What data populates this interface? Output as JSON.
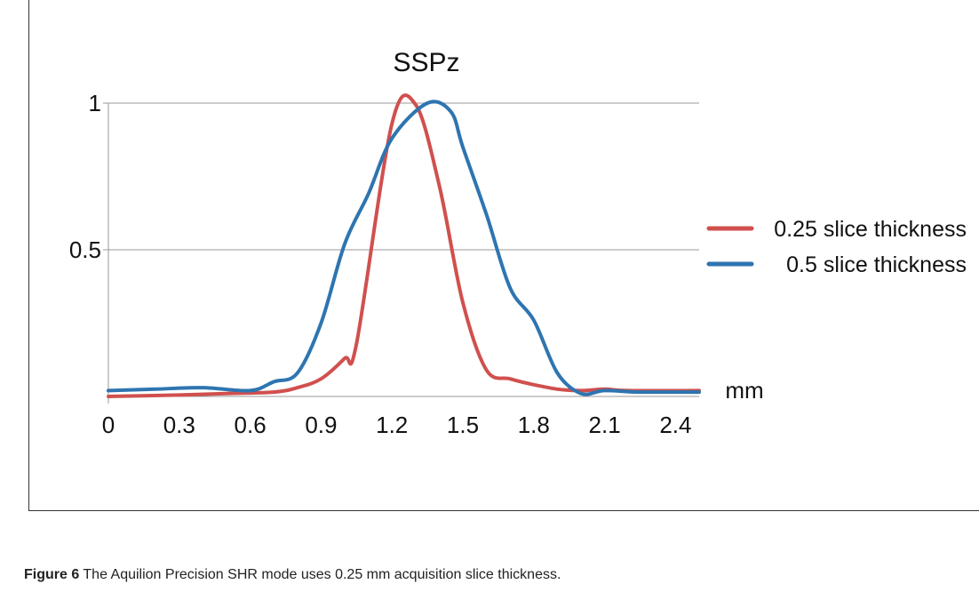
{
  "chart_data": {
    "type": "line",
    "title": "SSPz",
    "xlabel": "mm",
    "ylabel": "",
    "xlim": [
      0,
      2.5
    ],
    "ylim": [
      0,
      1
    ],
    "x_ticks": [
      "0",
      "0.3",
      "0.6",
      "0.9",
      "1.2",
      "1.5",
      "1.8",
      "2.1",
      "2.4"
    ],
    "y_ticks": [
      "0.5",
      "1"
    ],
    "grid": true,
    "legend_position": "right",
    "series": [
      {
        "name": "0.25 slice thickness",
        "color": "#d0504e",
        "points": [
          [
            0,
            0.0
          ],
          [
            0.3,
            0.005
          ],
          [
            0.5,
            0.01
          ],
          [
            0.7,
            0.015
          ],
          [
            0.8,
            0.03
          ],
          [
            0.9,
            0.06
          ],
          [
            1.0,
            0.13
          ],
          [
            1.05,
            0.18
          ],
          [
            1.2,
            0.93
          ],
          [
            1.3,
            0.995
          ],
          [
            1.4,
            0.72
          ],
          [
            1.5,
            0.32
          ],
          [
            1.6,
            0.09
          ],
          [
            1.7,
            0.06
          ],
          [
            1.8,
            0.04
          ],
          [
            1.9,
            0.025
          ],
          [
            2.0,
            0.02
          ],
          [
            2.1,
            0.025
          ],
          [
            2.2,
            0.02
          ],
          [
            2.5,
            0.02
          ]
        ]
      },
      {
        "name": "0.5 slice thickness",
        "color": "#2e75b0",
        "points": [
          [
            0,
            0.02
          ],
          [
            0.2,
            0.025
          ],
          [
            0.4,
            0.03
          ],
          [
            0.6,
            0.02
          ],
          [
            0.7,
            0.05
          ],
          [
            0.8,
            0.08
          ],
          [
            0.9,
            0.25
          ],
          [
            1.0,
            0.52
          ],
          [
            1.1,
            0.69
          ],
          [
            1.2,
            0.88
          ],
          [
            1.35,
            1.0
          ],
          [
            1.45,
            0.97
          ],
          [
            1.5,
            0.85
          ],
          [
            1.6,
            0.62
          ],
          [
            1.7,
            0.37
          ],
          [
            1.8,
            0.26
          ],
          [
            1.9,
            0.08
          ],
          [
            2.0,
            0.01
          ],
          [
            2.1,
            0.02
          ],
          [
            2.25,
            0.015
          ],
          [
            2.5,
            0.015
          ]
        ]
      }
    ]
  },
  "caption": {
    "label": "Figure 6",
    "text": " The Aquilion Precision SHR mode uses 0.25 mm acquisition slice thickness."
  }
}
